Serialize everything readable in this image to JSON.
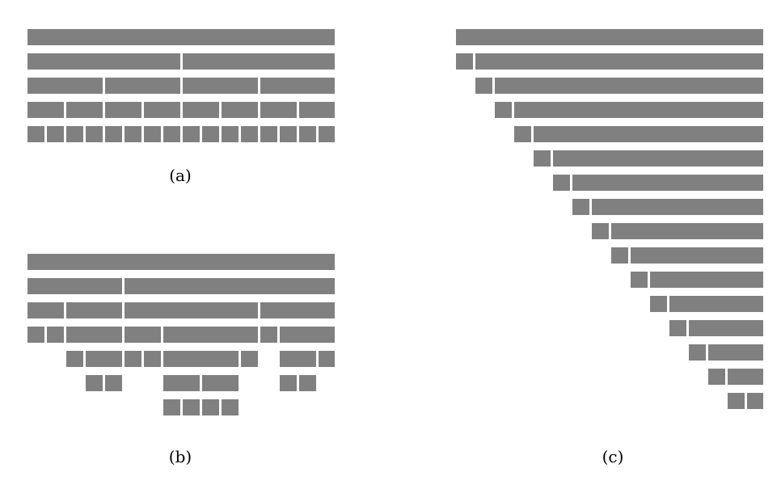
{
  "colors": {
    "block": "#808080",
    "background": "#ffffff"
  },
  "panels": [
    {
      "caption": "(a)",
      "rows": [
        [
          [
            0,
            16
          ]
        ],
        [
          [
            0,
            8
          ],
          [
            8,
            16
          ]
        ],
        [
          [
            0,
            4
          ],
          [
            4,
            8
          ],
          [
            8,
            12
          ],
          [
            12,
            16
          ]
        ],
        [
          [
            0,
            2
          ],
          [
            2,
            4
          ],
          [
            4,
            6
          ],
          [
            6,
            8
          ],
          [
            8,
            10
          ],
          [
            10,
            12
          ],
          [
            12,
            14
          ],
          [
            14,
            16
          ]
        ],
        [
          [
            0,
            1
          ],
          [
            1,
            2
          ],
          [
            2,
            3
          ],
          [
            3,
            4
          ],
          [
            4,
            5
          ],
          [
            5,
            6
          ],
          [
            6,
            7
          ],
          [
            7,
            8
          ],
          [
            8,
            9
          ],
          [
            9,
            10
          ],
          [
            10,
            11
          ],
          [
            11,
            12
          ],
          [
            12,
            13
          ],
          [
            13,
            14
          ],
          [
            14,
            15
          ],
          [
            15,
            16
          ]
        ]
      ]
    },
    {
      "caption": "(b)",
      "rows": [
        [
          [
            0,
            16
          ]
        ],
        [
          [
            0,
            5
          ],
          [
            5,
            16
          ]
        ],
        [
          [
            0,
            2
          ],
          [
            2,
            5
          ],
          [
            5,
            12
          ],
          [
            12,
            16
          ]
        ],
        [
          [
            0,
            1
          ],
          [
            1,
            2
          ],
          [
            2,
            5
          ],
          [
            5,
            7
          ],
          [
            7,
            12
          ],
          [
            12,
            13
          ],
          [
            13,
            16
          ]
        ],
        [
          [
            2,
            3
          ],
          [
            3,
            5
          ],
          [
            5,
            6
          ],
          [
            6,
            7
          ],
          [
            7,
            11
          ],
          [
            11,
            12
          ],
          [
            13,
            15
          ],
          [
            15,
            16
          ]
        ],
        [
          [
            3,
            4
          ],
          [
            4,
            5
          ],
          [
            7,
            9
          ],
          [
            9,
            11
          ],
          [
            13,
            14
          ],
          [
            14,
            15
          ]
        ],
        [
          [
            7,
            8
          ],
          [
            8,
            9
          ],
          [
            9,
            10
          ],
          [
            10,
            11
          ]
        ]
      ]
    },
    {
      "caption": "(c)",
      "rows": [
        [
          [
            0,
            16
          ]
        ],
        [
          [
            0,
            1
          ],
          [
            1,
            16
          ]
        ],
        [
          [
            1,
            2
          ],
          [
            2,
            16
          ]
        ],
        [
          [
            2,
            3
          ],
          [
            3,
            16
          ]
        ],
        [
          [
            3,
            4
          ],
          [
            4,
            16
          ]
        ],
        [
          [
            4,
            5
          ],
          [
            5,
            16
          ]
        ],
        [
          [
            5,
            6
          ],
          [
            6,
            16
          ]
        ],
        [
          [
            6,
            7
          ],
          [
            7,
            16
          ]
        ],
        [
          [
            7,
            8
          ],
          [
            8,
            16
          ]
        ],
        [
          [
            8,
            9
          ],
          [
            9,
            16
          ]
        ],
        [
          [
            9,
            10
          ],
          [
            10,
            16
          ]
        ],
        [
          [
            10,
            11
          ],
          [
            11,
            16
          ]
        ],
        [
          [
            11,
            12
          ],
          [
            12,
            16
          ]
        ],
        [
          [
            12,
            13
          ],
          [
            13,
            16
          ]
        ],
        [
          [
            13,
            14
          ],
          [
            14,
            16
          ]
        ],
        [
          [
            14,
            15
          ],
          [
            15,
            16
          ]
        ]
      ]
    }
  ]
}
